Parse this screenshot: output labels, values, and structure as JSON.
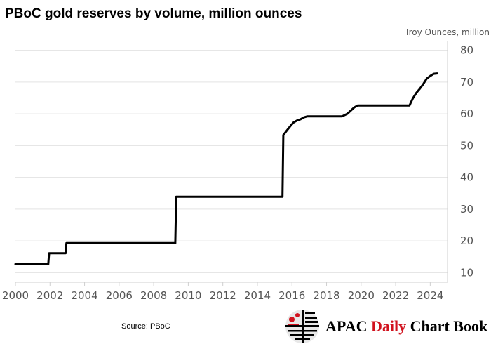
{
  "title": "PBoC gold reserves by volume, million ounces",
  "source": "Source: PBoC",
  "brand": {
    "part1": "APAC ",
    "part2": "Daily",
    "part3": " Chart Book",
    "accent_color": "#d1121e",
    "logo_icon": "apac-logo-icon"
  },
  "chart_data": {
    "type": "line",
    "title": "PBoC gold reserves by volume, million ounces",
    "ylabel": "Troy Ounces, million",
    "xlabel": "",
    "xlim": [
      2000,
      2025
    ],
    "ylim": [
      7,
      83
    ],
    "x_ticks": [
      2000,
      2002,
      2004,
      2006,
      2008,
      2010,
      2012,
      2014,
      2016,
      2018,
      2020,
      2022,
      2024
    ],
    "x_tick_labels": [
      "2000",
      "2002",
      "2004",
      "2006",
      "2008",
      "2010",
      "2012",
      "2014",
      "2016",
      "2018",
      "2020",
      "2022",
      "2024"
    ],
    "y_ticks": [
      10,
      20,
      30,
      40,
      50,
      60,
      70,
      80
    ],
    "y_tick_labels": [
      "10",
      "20",
      "30",
      "40",
      "50",
      "60",
      "70",
      "80"
    ],
    "y_axis_side": "right",
    "grid": "horizontal",
    "line_color": "#000000",
    "series": [
      {
        "name": "PBoC gold reserves",
        "x": [
          2000.0,
          2001.9,
          2001.95,
          2002.9,
          2002.95,
          2009.25,
          2009.3,
          2015.45,
          2015.5,
          2015.7,
          2015.9,
          2016.0,
          2016.1,
          2016.3,
          2016.5,
          2016.7,
          2016.9,
          2017.5,
          2018.5,
          2018.9,
          2019.2,
          2019.4,
          2019.6,
          2019.8,
          2020.2,
          2021.0,
          2022.0,
          2022.8,
          2022.9,
          2023.0,
          2023.2,
          2023.4,
          2023.6,
          2023.8,
          2024.0,
          2024.2,
          2024.4
        ],
        "values": [
          12.7,
          12.7,
          16.1,
          16.1,
          19.3,
          19.3,
          33.9,
          33.9,
          53.3,
          54.7,
          56.1,
          56.7,
          57.3,
          57.9,
          58.3,
          58.9,
          59.2,
          59.2,
          59.2,
          59.2,
          60.0,
          61.0,
          62.0,
          62.6,
          62.6,
          62.6,
          62.6,
          62.6,
          63.8,
          64.9,
          66.6,
          67.9,
          69.4,
          71.1,
          71.9,
          72.6,
          72.7
        ]
      }
    ]
  }
}
